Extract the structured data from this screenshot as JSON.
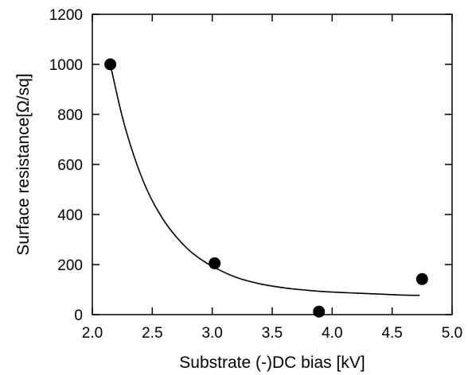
{
  "chart_data": {
    "type": "scatter",
    "title": "",
    "xlabel": "Substrate (-)DC bias [kV]",
    "ylabel": "Surface resistance[Ω/sq]",
    "xlim": [
      2.0,
      5.0
    ],
    "ylim": [
      0,
      1200
    ],
    "x_ticks": [
      2.0,
      2.5,
      3.0,
      3.5,
      4.0,
      4.5,
      5.0
    ],
    "x_tick_labels": [
      "2.0",
      "2.5",
      "3.0",
      "3.5",
      "4.0",
      "4.5",
      "5.0"
    ],
    "y_ticks": [
      0,
      200,
      400,
      600,
      800,
      1000,
      1200
    ],
    "y_tick_labels": [
      "0",
      "200",
      "400",
      "600",
      "800",
      "1000",
      "1200"
    ],
    "grid": false,
    "series": [
      {
        "kind": "points",
        "x": [
          2.15,
          3.02,
          3.89,
          4.75
        ],
        "y": [
          1000,
          205,
          12,
          142
        ]
      },
      {
        "kind": "fit-curve",
        "x": [
          2.15,
          2.25,
          2.35,
          2.45,
          2.55,
          2.65,
          2.75,
          2.85,
          3.0,
          3.2,
          3.4,
          3.6,
          3.8,
          4.0,
          4.2,
          4.4,
          4.6,
          4.73
        ],
        "y": [
          1000,
          790,
          630,
          505,
          412,
          340,
          284,
          240,
          193,
          149,
          123,
          107,
          97,
          90,
          86,
          82,
          78,
          77
        ]
      }
    ]
  }
}
